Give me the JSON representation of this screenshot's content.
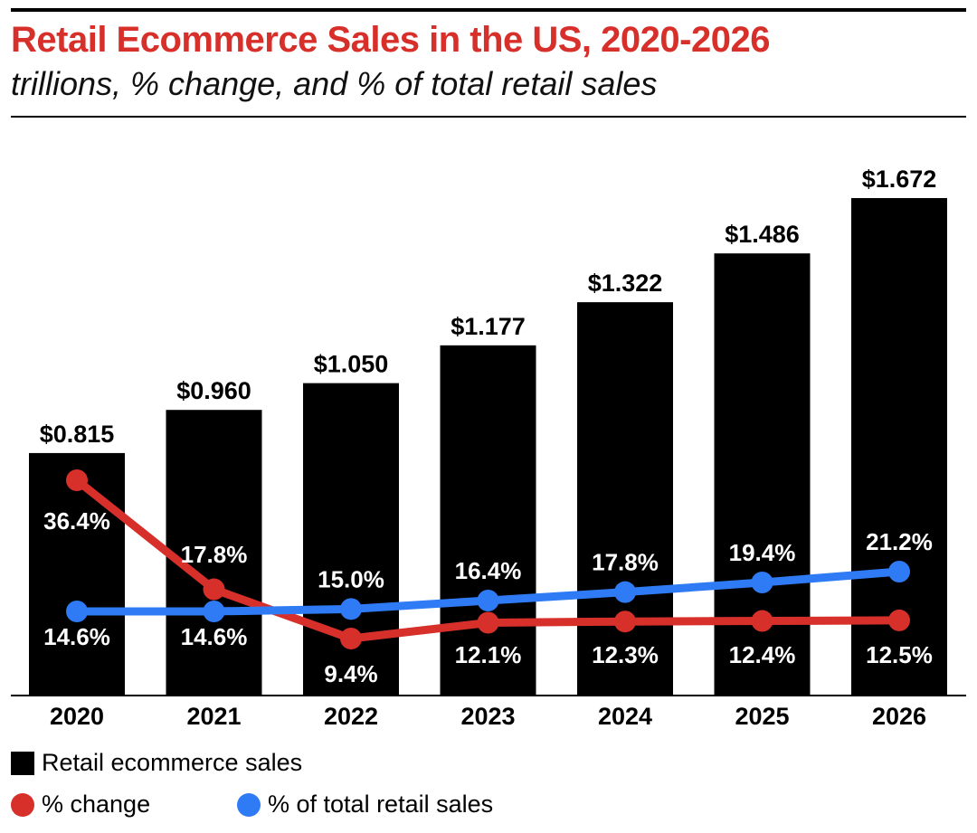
{
  "header": {
    "title": "Retail Ecommerce Sales in the US, 2020-2026",
    "subtitle": "trillions, % change, and % of total retail sales"
  },
  "chart_data": {
    "type": "bar",
    "categories": [
      "2020",
      "2021",
      "2022",
      "2023",
      "2024",
      "2025",
      "2026"
    ],
    "series": [
      {
        "name": "Retail ecommerce sales",
        "kind": "bar",
        "color": "#000000",
        "values": [
          0.815,
          0.96,
          1.05,
          1.177,
          1.322,
          1.486,
          1.672
        ],
        "labels": [
          "$0.815",
          "$0.960",
          "$1.050",
          "$1.177",
          "$1.322",
          "$1.486",
          "$1.672"
        ]
      },
      {
        "name": "% change",
        "kind": "line",
        "color": "#d7302b",
        "values": [
          36.4,
          17.8,
          9.4,
          12.1,
          12.3,
          12.4,
          12.5
        ],
        "labels": [
          "36.4%",
          "17.8%",
          "9.4%",
          "12.1%",
          "12.3%",
          "12.4%",
          "12.5%"
        ]
      },
      {
        "name": "% of total retail sales",
        "kind": "line",
        "color": "#2f7bf5",
        "values": [
          14.6,
          14.6,
          15.0,
          16.4,
          17.8,
          19.4,
          21.2
        ],
        "labels": [
          "14.6%",
          "14.6%",
          "15.0%",
          "16.4%",
          "17.8%",
          "19.4%",
          "21.2%"
        ]
      }
    ],
    "xlabel": "",
    "ylabel": "",
    "ylim": [
      0,
      1.672
    ],
    "grid": false,
    "legend_position": "bottom-left"
  },
  "legend": {
    "items": [
      {
        "label": "Retail ecommerce sales",
        "color": "#000000",
        "shape": "square"
      },
      {
        "label": "% change",
        "color": "#d7302b",
        "shape": "circle"
      },
      {
        "label": "% of total retail sales",
        "color": "#2f7bf5",
        "shape": "circle"
      }
    ]
  }
}
